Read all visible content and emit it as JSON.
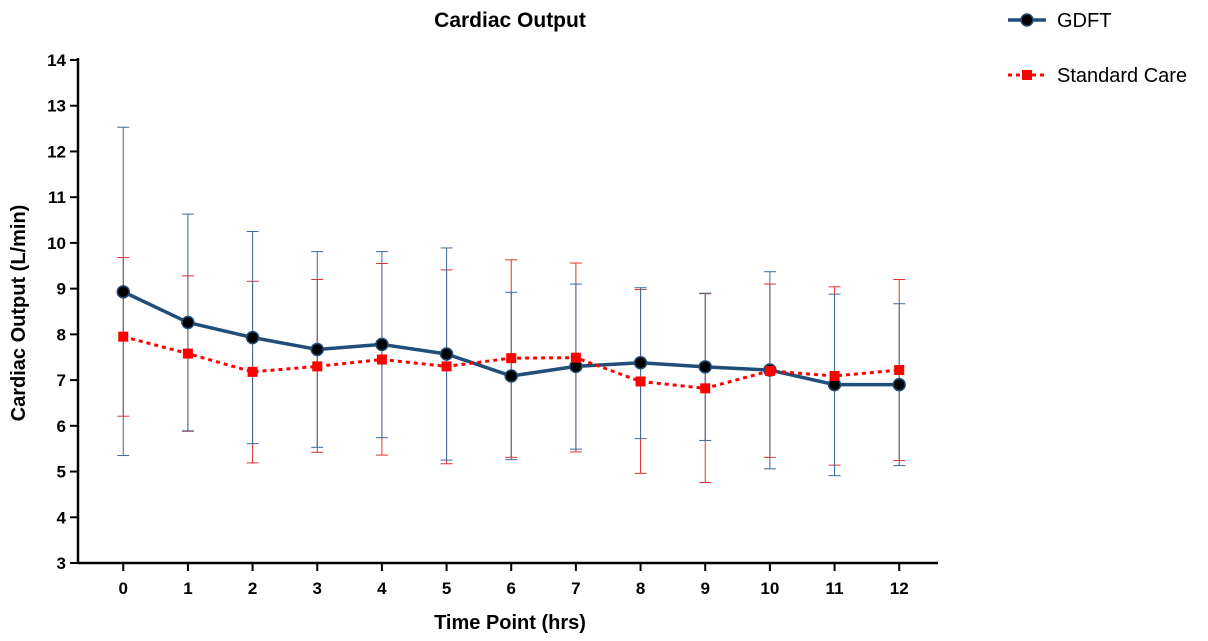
{
  "chart_data": {
    "type": "line",
    "title": "Cardiac Output",
    "xlabel": "Time Point (hrs)",
    "ylabel": "Cardiac Output (L/min)",
    "x": [
      0,
      1,
      2,
      3,
      4,
      5,
      6,
      7,
      8,
      9,
      10,
      11,
      12
    ],
    "xlim": [
      -0.7,
      12.6
    ],
    "ylim": [
      3,
      14
    ],
    "yticks": [
      3,
      4,
      5,
      6,
      7,
      8,
      9,
      10,
      11,
      12,
      13,
      14
    ],
    "grid": false,
    "legend_position": "top-right",
    "series": [
      {
        "name": "GDFT",
        "color": "#1f4e79",
        "marker": "circle",
        "line_style": "solid",
        "values": [
          8.93,
          8.26,
          7.93,
          7.67,
          7.78,
          7.57,
          7.09,
          7.3,
          7.38,
          7.29,
          7.22,
          6.9,
          6.9
        ],
        "error_upper": [
          12.53,
          10.63,
          10.25,
          9.81,
          9.81,
          9.89,
          8.92,
          9.1,
          9.02,
          8.9,
          9.37,
          8.88,
          8.67
        ],
        "error_lower": [
          5.35,
          5.89,
          5.61,
          5.53,
          5.74,
          5.25,
          5.26,
          5.49,
          5.72,
          5.68,
          5.06,
          4.91,
          5.13
        ]
      },
      {
        "name": "Standard Care",
        "color": "#ff0000",
        "marker": "square",
        "line_style": "dotted",
        "values": [
          7.95,
          7.58,
          7.18,
          7.3,
          7.45,
          7.3,
          7.48,
          7.49,
          6.97,
          6.82,
          7.2,
          7.09,
          7.22
        ],
        "error_upper": [
          9.68,
          9.28,
          9.16,
          9.2,
          9.55,
          9.41,
          9.63,
          9.56,
          8.98,
          8.89,
          9.1,
          9.04,
          9.2
        ],
        "error_lower": [
          6.21,
          5.88,
          5.19,
          5.42,
          5.36,
          5.17,
          5.31,
          5.43,
          4.96,
          4.76,
          5.31,
          5.14,
          5.24
        ]
      }
    ]
  }
}
